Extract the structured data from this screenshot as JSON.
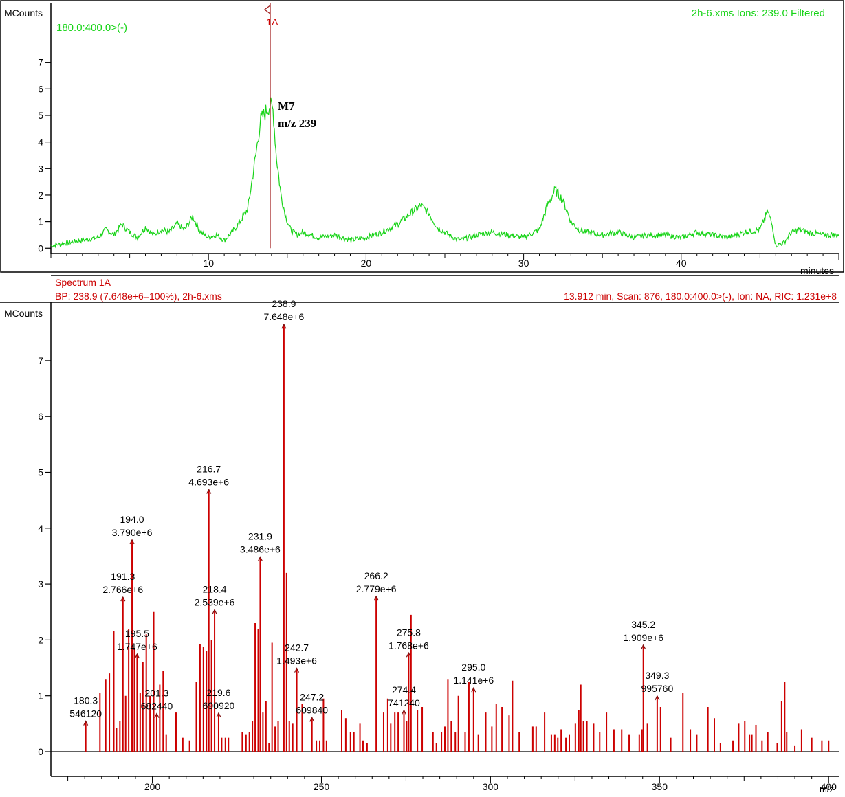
{
  "colors": {
    "chromatogram": "#18d418",
    "spectrum": "#cc0000",
    "marker": "#a01818",
    "axis": "#000000",
    "frame": "#000000"
  },
  "chart_data": [
    {
      "type": "line",
      "ylabel": "MCounts",
      "xlabel": "minutes",
      "header_left": "180.0:400.0>(-)",
      "header_right": "2h-6.xms Ions: 239.0 Filtered",
      "xlim": [
        0,
        50
      ],
      "ylim": [
        -0.2,
        8
      ],
      "x_ticks": [
        10,
        20,
        30,
        40
      ],
      "y_ticks": [
        0,
        1,
        2,
        3,
        4,
        5,
        6,
        7
      ],
      "marker": {
        "x": 13.912,
        "label": "1A"
      },
      "annotation": {
        "line1": "M7",
        "line2": "m/z 239",
        "x": 14.4,
        "y": 5.2
      },
      "series": [
        {
          "x": [
            0,
            1,
            2,
            3,
            3.5,
            4,
            4.5,
            5,
            5.5,
            6,
            6.5,
            7,
            7.5,
            8,
            8.5,
            9,
            9.5,
            10,
            10.5,
            11,
            11.5,
            12,
            12.5,
            13,
            13.3,
            13.6,
            13.9,
            14.1,
            14.3,
            14.6,
            14.9,
            15.2,
            15.6,
            16,
            17,
            18,
            19,
            20,
            21,
            22,
            23,
            23.5,
            24,
            24.5,
            25,
            25.5,
            26,
            27,
            28,
            29,
            30,
            31,
            31.5,
            32,
            32.5,
            33,
            33.5,
            34,
            35,
            36,
            37,
            38,
            39,
            40,
            41,
            42,
            43,
            44,
            45,
            45.5,
            45.8,
            46,
            46.5,
            47,
            47.5,
            48,
            49,
            50
          ],
          "y": [
            0.1,
            0.2,
            0.3,
            0.4,
            0.7,
            0.5,
            0.9,
            0.6,
            0.4,
            0.8,
            0.5,
            0.7,
            0.6,
            0.9,
            0.7,
            1.2,
            0.6,
            0.4,
            0.5,
            0.3,
            0.6,
            1.0,
            1.5,
            3.5,
            4.8,
            5.1,
            5.4,
            5.2,
            3.5,
            2.0,
            1.2,
            0.7,
            0.5,
            0.6,
            0.4,
            0.5,
            0.3,
            0.4,
            0.6,
            0.9,
            1.4,
            1.6,
            1.3,
            0.8,
            0.6,
            0.4,
            0.3,
            0.5,
            0.6,
            0.5,
            0.4,
            0.7,
            1.6,
            2.2,
            1.8,
            1.0,
            0.7,
            0.6,
            0.5,
            0.6,
            0.4,
            0.5,
            0.5,
            0.4,
            0.6,
            0.5,
            0.4,
            0.6,
            0.7,
            1.4,
            0.8,
            0.1,
            0.2,
            0.6,
            0.7,
            0.6,
            0.5,
            0.5
          ]
        }
      ]
    },
    {
      "type": "bar",
      "ylabel": "MCounts",
      "xlabel": "m/z",
      "title": "Spectrum 1A",
      "subtitle_left": "BP: 238.9 (7.648e+6=100%), 2h-6.xms",
      "subtitle_right": "13.912 min, Scan: 876, 180.0:400.0>(-), Ion: NA, RIC: 1.231e+8",
      "xlim": [
        170,
        403
      ],
      "ylim": [
        -0.4,
        7.8
      ],
      "x_ticks": [
        200,
        250,
        300,
        350,
        400
      ],
      "y_ticks": [
        0,
        1,
        2,
        3,
        4,
        5,
        6,
        7
      ],
      "x": [
        180.3,
        184.5,
        186.2,
        187.3,
        188.6,
        189.4,
        190.4,
        191.3,
        192.1,
        193.0,
        194.0,
        194.7,
        195.5,
        196.4,
        197.2,
        198.2,
        199.3,
        200.4,
        201.3,
        202.2,
        203.2,
        204.1,
        207.0,
        209.0,
        211.0,
        213.0,
        214.1,
        215.1,
        216.0,
        216.7,
        217.5,
        218.4,
        219.6,
        220.5,
        221.6,
        222.5,
        226.6,
        227.7,
        228.7,
        229.6,
        230.4,
        231.3,
        231.9,
        232.7,
        233.6,
        234.5,
        235.4,
        236.3,
        237.2,
        238.9,
        239.7,
        240.5,
        241.5,
        242.7,
        244.3,
        247.2,
        248.5,
        249.5,
        250.6,
        251.5,
        256.0,
        257.2,
        258.6,
        259.6,
        261.4,
        262.3,
        263.5,
        266.2,
        268.4,
        269.6,
        270.5,
        271.7,
        272.7,
        274.4,
        275.2,
        275.8,
        276.5,
        278.4,
        279.8,
        283.0,
        284.0,
        285.5,
        286.5,
        287.4,
        288.4,
        289.6,
        290.5,
        292.5,
        293.6,
        295.0,
        296.4,
        298.6,
        300.4,
        301.7,
        303.4,
        305.5,
        306.5,
        308.5,
        312.5,
        313.5,
        316.0,
        318.0,
        319.0,
        319.9,
        320.9,
        322.3,
        323.3,
        325.1,
        326.1,
        326.7,
        327.5,
        328.5,
        330.5,
        332.3,
        334.3,
        336.5,
        338.8,
        341.0,
        344.0,
        344.8,
        345.2,
        346.4,
        349.3,
        350.3,
        353.3,
        356.9,
        359.1,
        361.0,
        364.3,
        366.2,
        368.0,
        371.7,
        373.4,
        375.2,
        376.6,
        377.3,
        378.5,
        380.3,
        382.0,
        384.8,
        386.1,
        387.0,
        387.6,
        390.0,
        392.0,
        395.0,
        398.0,
        400.0
      ],
      "values": [
        0.546,
        1.05,
        1.3,
        1.4,
        2.16,
        0.42,
        0.55,
        2.766,
        1.0,
        2.2,
        3.79,
        1.85,
        1.747,
        1.05,
        1.6,
        2.1,
        1.0,
        2.5,
        0.682,
        1.2,
        1.45,
        0.3,
        0.7,
        0.25,
        0.2,
        1.25,
        1.92,
        1.88,
        1.8,
        4.693,
        2.0,
        2.539,
        0.691,
        0.25,
        0.25,
        0.25,
        0.35,
        0.3,
        0.35,
        0.55,
        2.3,
        2.2,
        3.486,
        0.7,
        0.9,
        0.15,
        1.95,
        0.45,
        0.55,
        7.648,
        3.2,
        0.55,
        0.5,
        1.493,
        0.85,
        0.61,
        0.2,
        0.2,
        0.95,
        0.2,
        0.75,
        0.6,
        0.35,
        0.35,
        0.5,
        0.2,
        0.15,
        2.779,
        0.7,
        0.95,
        0.5,
        0.7,
        0.7,
        0.741,
        0.55,
        1.768,
        2.45,
        0.75,
        0.8,
        0.35,
        0.15,
        0.35,
        0.45,
        1.3,
        0.55,
        0.35,
        1.0,
        0.35,
        1.25,
        1.141,
        0.3,
        0.7,
        0.45,
        0.85,
        0.8,
        0.65,
        1.27,
        0.35,
        0.45,
        0.45,
        0.7,
        0.3,
        0.3,
        0.25,
        0.4,
        0.25,
        0.3,
        0.5,
        0.75,
        1.2,
        0.55,
        0.55,
        0.5,
        0.35,
        0.7,
        0.4,
        0.4,
        0.3,
        0.3,
        0.4,
        1.909,
        0.5,
        0.996,
        0.8,
        0.25,
        1.05,
        0.4,
        0.3,
        0.8,
        0.6,
        0.15,
        0.2,
        0.5,
        0.55,
        0.3,
        0.3,
        0.48,
        0.2,
        0.35,
        0.15,
        0.9,
        1.25,
        0.35,
        0.1,
        0.4,
        0.25,
        0.2,
        0.2
      ],
      "peak_labels": [
        {
          "x": 180.3,
          "mz": "180.3",
          "intensity": "546120"
        },
        {
          "x": 191.3,
          "mz": "191.3",
          "intensity": "2.766e+6"
        },
        {
          "x": 194.0,
          "mz": "194.0",
          "intensity": "3.790e+6"
        },
        {
          "x": 195.5,
          "mz": "195.5",
          "intensity": "1.747e+6"
        },
        {
          "x": 201.3,
          "mz": "201.3",
          "intensity": "682440"
        },
        {
          "x": 216.7,
          "mz": "216.7",
          "intensity": "4.693e+6"
        },
        {
          "x": 218.4,
          "mz": "218.4",
          "intensity": "2.539e+6"
        },
        {
          "x": 219.6,
          "mz": "219.6",
          "intensity": "690920"
        },
        {
          "x": 231.9,
          "mz": "231.9",
          "intensity": "3.486e+6"
        },
        {
          "x": 238.9,
          "mz": "238.9",
          "intensity": "7.648e+6"
        },
        {
          "x": 242.7,
          "mz": "242.7",
          "intensity": "1.493e+6"
        },
        {
          "x": 247.2,
          "mz": "247.2",
          "intensity": "609840"
        },
        {
          "x": 266.2,
          "mz": "266.2",
          "intensity": "2.779e+6"
        },
        {
          "x": 274.4,
          "mz": "274.4",
          "intensity": "741240"
        },
        {
          "x": 275.8,
          "mz": "275.8",
          "intensity": "1.768e+6"
        },
        {
          "x": 295.0,
          "mz": "295.0",
          "intensity": "1.141e+6"
        },
        {
          "x": 345.2,
          "mz": "345.2",
          "intensity": "1.909e+6"
        },
        {
          "x": 349.3,
          "mz": "349.3",
          "intensity": "995760"
        }
      ]
    }
  ]
}
